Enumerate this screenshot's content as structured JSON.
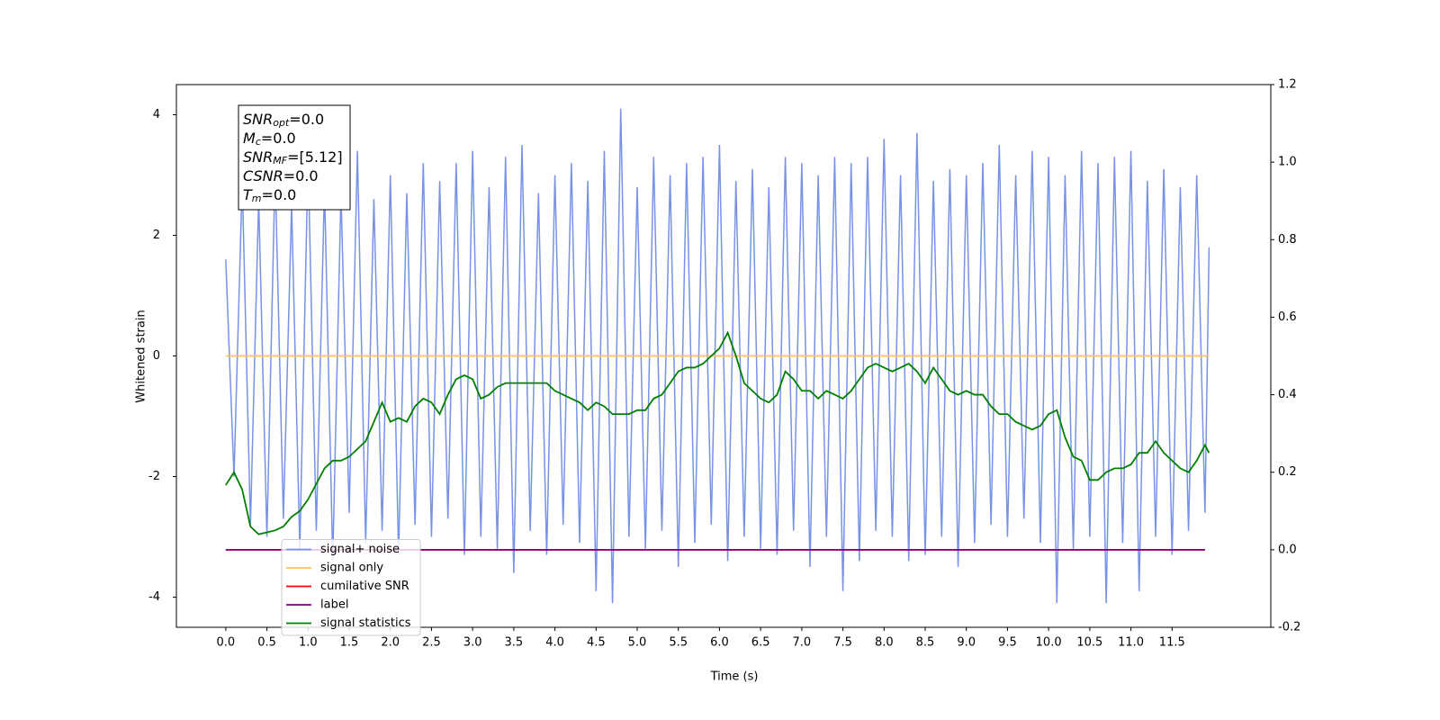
{
  "chart_data": {
    "type": "line",
    "xlabel": "Time (s)",
    "ylabel": "Whitened strain",
    "xlim": [
      -0.6,
      12.7
    ],
    "ylim": [
      -4.5,
      4.5
    ],
    "y2lim": [
      -0.2,
      1.2
    ],
    "xticks": [
      {
        "value": 0,
        "label": "0.0"
      },
      0.5,
      {
        "value": 1,
        "label": "1.0"
      },
      1.5,
      {
        "value": 2,
        "label": "2.0"
      },
      2.5,
      {
        "value": 3,
        "label": "3.0"
      },
      3.5,
      {
        "value": 4,
        "label": "4.0"
      },
      4.5,
      {
        "value": 5,
        "label": "5.0"
      },
      5.5,
      {
        "value": 6,
        "label": "6.0"
      },
      6.5,
      {
        "value": 7,
        "label": "7.0"
      },
      7.5,
      {
        "value": 8,
        "label": "8.0"
      },
      8.5,
      {
        "value": 9,
        "label": "9.0"
      },
      9.5,
      {
        "value": 10,
        "label": "10.0"
      },
      10.5,
      {
        "value": 11,
        "label": "11.0"
      },
      11.5
    ],
    "yticks": [
      -4,
      -2,
      0,
      2,
      4
    ],
    "y2ticks": [
      -0.2,
      {
        "value": 0,
        "label": "0.0"
      },
      0.2,
      0.4,
      0.6,
      0.8,
      {
        "value": 1,
        "label": "1.0"
      },
      1.2
    ],
    "grid": false,
    "legend_loc": "lower left",
    "x": [
      0,
      0.1,
      0.2,
      0.3,
      0.4,
      0.5,
      0.6,
      0.7,
      0.8,
      0.9,
      1,
      1.1,
      1.2,
      1.3,
      1.4,
      1.5,
      1.6,
      1.7,
      1.8,
      1.9,
      2,
      2.1,
      2.2,
      2.3,
      2.4,
      2.5,
      2.6,
      2.7,
      2.8,
      2.9,
      3,
      3.1,
      3.2,
      3.3,
      3.4,
      3.5,
      3.6,
      3.7,
      3.8,
      3.9,
      4,
      4.1,
      4.2,
      4.3,
      4.4,
      4.5,
      4.6,
      4.7,
      4.8,
      4.9,
      5,
      5.1,
      5.2,
      5.3,
      5.4,
      5.5,
      5.6,
      5.7,
      5.8,
      5.9,
      6,
      6.1,
      6.2,
      6.3,
      6.4,
      6.5,
      6.6,
      6.7,
      6.8,
      6.9,
      7,
      7.1,
      7.2,
      7.3,
      7.4,
      7.5,
      7.6,
      7.7,
      7.8,
      7.9,
      8,
      8.1,
      8.2,
      8.3,
      8.4,
      8.5,
      8.6,
      8.7,
      8.8,
      8.9,
      9,
      9.1,
      9.2,
      9.3,
      9.4,
      9.5,
      9.6,
      9.7,
      9.8,
      9.9,
      10,
      10.1,
      10.2,
      10.3,
      10.4,
      10.5,
      10.6,
      10.7,
      10.8,
      10.9,
      11,
      11.1,
      11.2,
      11.3,
      11.4,
      11.5,
      11.6,
      11.7,
      11.8,
      11.9,
      11.95
    ],
    "series": [
      {
        "name": "signal+ noise",
        "color": "#7893e6",
        "values": [
          1.6,
          -2.0,
          2.9,
          -2.8,
          2.6,
          -3.0,
          3.1,
          -2.7,
          2.5,
          -3.2,
          3.3,
          -2.9,
          2.8,
          -3.4,
          2.7,
          -2.6,
          3.4,
          -3.1,
          2.6,
          -2.9,
          3.0,
          -3.3,
          2.7,
          -2.8,
          3.2,
          -3.0,
          2.9,
          -2.7,
          3.2,
          -3.3,
          3.4,
          -3.0,
          2.8,
          -3.2,
          3.3,
          -3.6,
          3.5,
          -2.9,
          2.7,
          -3.3,
          3.0,
          -2.8,
          3.2,
          -3.1,
          2.9,
          -3.9,
          3.4,
          -4.1,
          4.1,
          -3.0,
          2.8,
          -3.2,
          3.3,
          -2.9,
          3.0,
          -3.5,
          3.2,
          -3.1,
          3.3,
          -2.8,
          3.5,
          -3.4,
          2.9,
          -3.0,
          3.1,
          -3.2,
          2.8,
          -3.3,
          3.3,
          -2.9,
          3.2,
          -3.5,
          3.0,
          -3.0,
          3.3,
          -3.9,
          3.2,
          -3.4,
          3.3,
          -2.9,
          3.6,
          -3.0,
          3.0,
          -3.4,
          3.7,
          -3.3,
          2.9,
          -3.0,
          3.1,
          -3.5,
          3.0,
          -3.1,
          3.2,
          -2.8,
          3.5,
          -3.0,
          3.0,
          -2.7,
          3.4,
          -3.1,
          3.3,
          -4.1,
          3.0,
          -3.2,
          3.4,
          -3.0,
          3.2,
          -4.1,
          3.3,
          -3.1,
          3.4,
          -3.9,
          2.9,
          -3.0,
          3.1,
          -3.3,
          2.8,
          -2.9,
          3.0,
          -2.6,
          1.8
        ]
      },
      {
        "name": "signal only",
        "color": "#ffbf60",
        "x": [
          0,
          11.95
        ],
        "values": [
          0,
          0
        ]
      },
      {
        "name": "cumilative SNR",
        "color": "#ff0000",
        "axis": "y2",
        "x": [
          0,
          11.9
        ],
        "values": [
          0,
          0
        ]
      },
      {
        "name": "label",
        "color": "#800080",
        "axis": "y2",
        "x": [
          0,
          11.9
        ],
        "values": [
          0,
          0
        ]
      },
      {
        "name": "signal statistics",
        "color": "#008000",
        "axis": "y2",
        "values": [
          0.167,
          0.2,
          0.155,
          0.06,
          0.04,
          0.045,
          0.05,
          0.06,
          0.085,
          0.1,
          0.13,
          0.17,
          0.21,
          0.23,
          0.23,
          0.24,
          0.26,
          0.28,
          0.33,
          0.38,
          0.33,
          0.34,
          0.33,
          0.37,
          0.39,
          0.38,
          0.35,
          0.4,
          0.44,
          0.45,
          0.44,
          0.39,
          0.4,
          0.42,
          0.43,
          0.43,
          0.43,
          0.43,
          0.43,
          0.43,
          0.41,
          0.4,
          0.39,
          0.38,
          0.36,
          0.38,
          0.37,
          0.35,
          0.35,
          0.35,
          0.36,
          0.36,
          0.39,
          0.4,
          0.43,
          0.46,
          0.47,
          0.47,
          0.48,
          0.5,
          0.52,
          0.56,
          0.5,
          0.43,
          0.41,
          0.39,
          0.38,
          0.4,
          0.46,
          0.44,
          0.41,
          0.41,
          0.39,
          0.41,
          0.4,
          0.39,
          0.41,
          0.44,
          0.47,
          0.48,
          0.47,
          0.46,
          0.47,
          0.48,
          0.46,
          0.43,
          0.47,
          0.44,
          0.41,
          0.4,
          0.41,
          0.4,
          0.4,
          0.37,
          0.35,
          0.35,
          0.33,
          0.32,
          0.31,
          0.32,
          0.35,
          0.36,
          0.29,
          0.24,
          0.23,
          0.18,
          0.18,
          0.2,
          0.21,
          0.21,
          0.22,
          0.25,
          0.25,
          0.28,
          0.25,
          0.23,
          0.21,
          0.2,
          0.23,
          0.27,
          0.25
        ]
      }
    ],
    "annotation": [
      {
        "name": "SNR",
        "sub": "opt",
        "text": "=0.0"
      },
      {
        "name": "M",
        "sub": "c",
        "text": "=0.0"
      },
      {
        "name": "SNR",
        "sub": "MF",
        "text": "=[5.12]"
      },
      {
        "name": "CSNR",
        "text": "=0.0"
      },
      {
        "name": "T",
        "sub": "m",
        "text": "=0.0"
      }
    ]
  }
}
